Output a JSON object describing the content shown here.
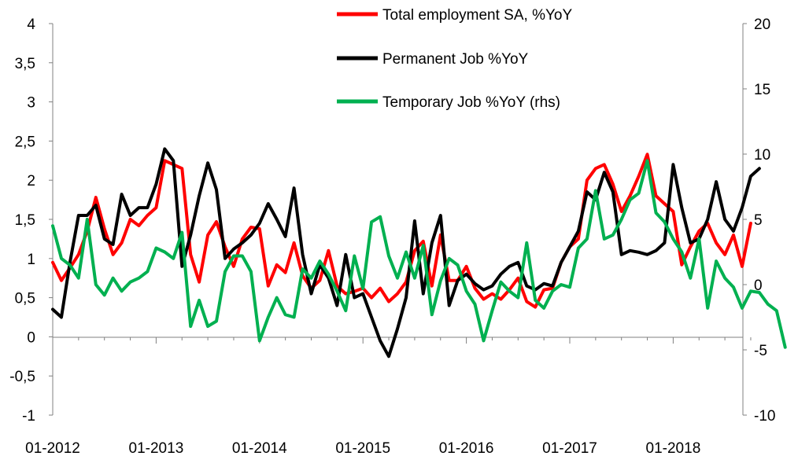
{
  "chart_data": {
    "type": "line",
    "title": "",
    "xlabel": "",
    "ylabel": "",
    "y2label": "",
    "ylim": [
      -1,
      4
    ],
    "y2lim": [
      -10,
      20
    ],
    "yticks": [
      "-1",
      "-0,5",
      "0",
      "0,5",
      "1",
      "1,5",
      "2",
      "2,5",
      "3",
      "3,5",
      "4"
    ],
    "y2ticks": [
      "-10",
      "-5",
      "0",
      "5",
      "10",
      "15",
      "20"
    ],
    "xticks": [
      "01-2012",
      "01-2013",
      "01-2014",
      "01-2015",
      "01-2016",
      "01-2017",
      "01-2018"
    ],
    "x_start": "01-2012",
    "grid": false,
    "legend_position": "top-center",
    "colors": {
      "total": "#ff0000",
      "permanent": "#000000",
      "temporary": "#00b050"
    },
    "series": [
      {
        "name": "Total employment SA, %YoY",
        "axis": "left",
        "color": "#ff0000",
        "values": [
          0.95,
          0.72,
          0.88,
          1.05,
          1.35,
          1.78,
          1.38,
          1.05,
          1.2,
          1.5,
          1.42,
          1.55,
          1.65,
          2.25,
          2.2,
          2.15,
          1.05,
          0.7,
          1.3,
          1.47,
          1.15,
          0.9,
          1.25,
          1.4,
          1.38,
          0.65,
          0.92,
          0.82,
          1.2,
          0.78,
          0.62,
          0.72,
          1.1,
          0.65,
          0.55,
          0.58,
          0.62,
          0.5,
          0.62,
          0.45,
          0.55,
          0.7,
          1.1,
          1.22,
          0.65,
          1.3,
          0.72,
          0.72,
          0.9,
          0.62,
          0.48,
          0.55,
          0.48,
          0.6,
          0.75,
          0.45,
          0.38,
          0.6,
          0.62,
          0.95,
          1.15,
          1.25,
          2.0,
          2.15,
          2.2,
          1.95,
          1.6,
          1.8,
          2.05,
          2.33,
          1.8,
          1.7,
          1.6,
          0.92,
          1.15,
          1.35,
          1.45,
          1.2,
          1.05,
          1.3,
          0.9,
          1.45
        ]
      },
      {
        "name": "Permanent Job %YoY",
        "axis": "left",
        "color": "#000000",
        "values": [
          0.35,
          0.25,
          0.95,
          1.55,
          1.55,
          1.68,
          1.25,
          1.18,
          1.82,
          1.55,
          1.65,
          1.65,
          1.95,
          2.4,
          2.25,
          0.9,
          1.3,
          1.8,
          2.22,
          1.88,
          1.0,
          1.12,
          1.2,
          1.3,
          1.45,
          1.7,
          1.5,
          1.28,
          1.9,
          1.05,
          0.55,
          0.92,
          0.75,
          0.4,
          1.05,
          0.5,
          0.55,
          0.25,
          -0.05,
          -0.25,
          0.1,
          0.5,
          1.48,
          0.55,
          1.2,
          1.55,
          0.4,
          0.72,
          0.8,
          0.68,
          0.6,
          0.65,
          0.8,
          0.9,
          0.95,
          0.65,
          0.6,
          0.68,
          0.65,
          0.95,
          1.15,
          1.35,
          1.85,
          1.75,
          2.1,
          1.85,
          1.05,
          1.1,
          1.08,
          1.05,
          1.1,
          1.2,
          2.2,
          1.65,
          1.2,
          1.25,
          1.5,
          1.98,
          1.5,
          1.35,
          1.65,
          2.05,
          2.15
        ]
      },
      {
        "name": "Temporary Job %YoY (rhs)",
        "axis": "right",
        "color": "#00b050",
        "values": [
          4.5,
          2.0,
          1.5,
          0.5,
          5.0,
          0.0,
          -0.8,
          0.5,
          -0.5,
          0.2,
          0.5,
          1.0,
          2.8,
          2.5,
          2.0,
          4.0,
          -3.2,
          -1.2,
          -3.2,
          -2.8,
          1.0,
          2.2,
          2.2,
          1.0,
          -4.3,
          -2.5,
          -1.0,
          -2.3,
          -2.5,
          1.2,
          0.5,
          1.8,
          0.8,
          -0.5,
          -2.0,
          2.2,
          -0.3,
          4.8,
          5.2,
          2.2,
          0.5,
          2.5,
          0.5,
          3.0,
          -2.3,
          0.3,
          2.0,
          1.5,
          -0.5,
          -1.5,
          -4.3,
          -2.0,
          0.2,
          -0.5,
          -1.0,
          3.2,
          -1.2,
          -1.8,
          -0.5,
          0.0,
          -0.2,
          2.8,
          3.5,
          7.2,
          3.5,
          3.8,
          5.0,
          6.5,
          7.0,
          9.5,
          5.5,
          4.8,
          3.5,
          2.5,
          0.5,
          3.5,
          -1.8,
          1.8,
          0.5,
          -0.2,
          -1.8,
          -0.5,
          -0.6,
          -1.5,
          -2.0,
          -4.8
        ]
      }
    ]
  }
}
